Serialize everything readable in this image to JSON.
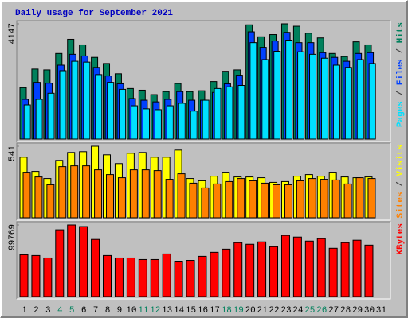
{
  "title": "Daily usage for September 2021",
  "legend_separator": "/",
  "chart_data": [
    {
      "type": "bar",
      "ylim": [
        0,
        4147
      ],
      "yticks": [
        4147
      ],
      "series": [
        {
          "name": "Hits",
          "color": "#00805c",
          "values": [
            1850,
            2520,
            2490,
            3080,
            3590,
            3390,
            2940,
            2720,
            2350,
            1820,
            1760,
            1600,
            1710,
            2000,
            1710,
            1740,
            2070,
            2440,
            2490,
            4110,
            3680,
            3760,
            4147,
            4060,
            3810,
            3640,
            3080,
            2970,
            3500,
            3390,
            null
          ]
        },
        {
          "name": "Files",
          "color": "#0040ff",
          "values": [
            1430,
            2040,
            2010,
            2660,
            3050,
            2990,
            2580,
            2270,
            1990,
            1460,
            1400,
            1340,
            1430,
            1710,
            1400,
            1400,
            1680,
            1990,
            2300,
            3860,
            3300,
            3530,
            3840,
            3470,
            3470,
            3110,
            2940,
            2800,
            3080,
            3110,
            null
          ]
        },
        {
          "name": "Pages",
          "color": "#00e0ff",
          "values": [
            1230,
            1430,
            1650,
            2460,
            2800,
            2770,
            2320,
            2040,
            1790,
            1200,
            1090,
            1060,
            1200,
            1290,
            1010,
            1400,
            1820,
            1880,
            1930,
            3470,
            2860,
            3160,
            3560,
            3140,
            3050,
            2910,
            2660,
            2580,
            2860,
            2720,
            null
          ]
        }
      ]
    },
    {
      "type": "bar",
      "ylim": [
        0,
        541
      ],
      "yticks": [
        541
      ],
      "series": [
        {
          "name": "Visits",
          "color": "#ffff00",
          "values": [
            458,
            351,
            297,
            434,
            494,
            500,
            541,
            476,
            410,
            488,
            494,
            458,
            458,
            512,
            297,
            280,
            315,
            345,
            309,
            309,
            303,
            268,
            274,
            315,
            327,
            315,
            345,
            309,
            303,
            309,
            null
          ]
        },
        {
          "name": "Sites",
          "color": "#ff8000",
          "values": [
            345,
            309,
            250,
            387,
            393,
            393,
            363,
            327,
            303,
            363,
            363,
            357,
            291,
            333,
            262,
            226,
            256,
            274,
            297,
            280,
            262,
            250,
            250,
            280,
            297,
            291,
            286,
            256,
            303,
            297,
            null
          ]
        }
      ]
    },
    {
      "type": "bar",
      "ylim": [
        0,
        99769
      ],
      "yticks": [
        99769
      ],
      "categories": [
        "1",
        "2",
        "3",
        "4",
        "5",
        "6",
        "7",
        "8",
        "9",
        "10",
        "11",
        "12",
        "13",
        "14",
        "15",
        "16",
        "17",
        "18",
        "19",
        "20",
        "21",
        "22",
        "23",
        "24",
        "25",
        "26",
        "27",
        "28",
        "29",
        "30",
        "31"
      ],
      "category_colors": [
        "#000000",
        "#000000",
        "#000000",
        "#00805c",
        "#00805c",
        "#000000",
        "#000000",
        "#000000",
        "#000000",
        "#000000",
        "#00805c",
        "#00805c",
        "#000000",
        "#000000",
        "#000000",
        "#000000",
        "#000000",
        "#00805c",
        "#00805c",
        "#000000",
        "#000000",
        "#000000",
        "#000000",
        "#000000",
        "#00805c",
        "#00805c",
        "#000000",
        "#000000",
        "#000000",
        "#000000",
        "#000000"
      ],
      "series": [
        {
          "name": "KBytes",
          "color": "#ff0000",
          "values": [
            58300,
            57200,
            53800,
            93000,
            99769,
            97500,
            79600,
            57200,
            53800,
            53800,
            51600,
            51600,
            59400,
            49300,
            50400,
            56100,
            61700,
            66100,
            75100,
            72900,
            76200,
            69500,
            85200,
            82900,
            77300,
            80700,
            67300,
            75100,
            78500,
            71700,
            null
          ]
        }
      ]
    }
  ]
}
